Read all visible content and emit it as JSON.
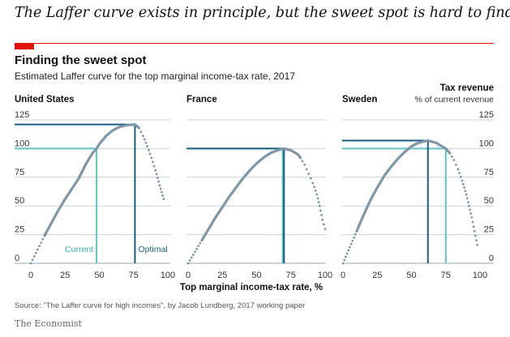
{
  "headline": "The Laffer curve exists in principle, but the sweet spot is hard to find",
  "brand": "The Economist",
  "chart_data": {
    "type": "line",
    "title": "Finding the sweet spot",
    "subtitle": "Estimated Laffer curve for the top marginal income-tax rate, 2017",
    "xlabel": "Top marginal income-tax rate, %",
    "ylabel": "Tax revenue",
    "ylabel_unit": "% of current revenue",
    "source": "Source: \"The Laffer curve for high incomes\", by Jacob Lundberg, 2017 working paper",
    "ylim": [
      0,
      125
    ],
    "xlim": [
      0,
      100
    ],
    "y_ticks": [
      0,
      25,
      50,
      75,
      100,
      125
    ],
    "x_tick_labels": [
      "0",
      "25",
      "50",
      "75",
      "100"
    ],
    "grid": "horizontal",
    "colors": {
      "curve": "#7f97a6",
      "current": "#5fc4c4",
      "optimal": "#1b5e82",
      "grid": "#c8d3da",
      "accent": "#e3120b"
    },
    "panels": [
      {
        "name": "United States",
        "current": {
          "rate": 48,
          "revenue": 100,
          "label": "Current"
        },
        "optimal": {
          "rate": 76,
          "revenue": 121,
          "label": "Optimal"
        },
        "solid_until": 79,
        "curve": [
          [
            0,
            0
          ],
          [
            5,
            12
          ],
          [
            10,
            24
          ],
          [
            15,
            35
          ],
          [
            20,
            46
          ],
          [
            25,
            56
          ],
          [
            30,
            65
          ],
          [
            35,
            74
          ],
          [
            40,
            86
          ],
          [
            45,
            96
          ],
          [
            48,
            100
          ],
          [
            50,
            104
          ],
          [
            55,
            111
          ],
          [
            60,
            116
          ],
          [
            65,
            119
          ],
          [
            70,
            120.5
          ],
          [
            76,
            121
          ],
          [
            79,
            118
          ],
          [
            82,
            111
          ],
          [
            85,
            102
          ],
          [
            88,
            92
          ],
          [
            91,
            81
          ],
          [
            94,
            68
          ],
          [
            97,
            56
          ]
        ]
      },
      {
        "name": "France",
        "current": {
          "rate": 69,
          "revenue": 100
        },
        "optimal": {
          "rate": 70,
          "revenue": 100
        },
        "solid_until": 82,
        "curve": [
          [
            0,
            0
          ],
          [
            5,
            10
          ],
          [
            10,
            20
          ],
          [
            15,
            30
          ],
          [
            20,
            40
          ],
          [
            25,
            49
          ],
          [
            30,
            58
          ],
          [
            35,
            66
          ],
          [
            40,
            74
          ],
          [
            45,
            81
          ],
          [
            50,
            87
          ],
          [
            55,
            92
          ],
          [
            60,
            96
          ],
          [
            65,
            98.5
          ],
          [
            70,
            100
          ],
          [
            75,
            98.5
          ],
          [
            80,
            95
          ],
          [
            82,
            92
          ],
          [
            85,
            86
          ],
          [
            88,
            78
          ],
          [
            91,
            70
          ],
          [
            94,
            60
          ],
          [
            96,
            50
          ],
          [
            98,
            38
          ],
          [
            100,
            30
          ]
        ]
      },
      {
        "name": "Sweden",
        "current": {
          "rate": 75,
          "revenue": 100
        },
        "optimal": {
          "rate": 62,
          "revenue": 107
        },
        "solid_until": 78,
        "curve": [
          [
            0,
            0
          ],
          [
            5,
            14
          ],
          [
            10,
            28
          ],
          [
            15,
            42
          ],
          [
            20,
            55
          ],
          [
            25,
            66
          ],
          [
            30,
            76
          ],
          [
            35,
            84
          ],
          [
            40,
            91
          ],
          [
            45,
            97
          ],
          [
            50,
            102
          ],
          [
            55,
            105
          ],
          [
            62,
            107
          ],
          [
            68,
            105
          ],
          [
            75,
            100
          ],
          [
            78,
            96
          ],
          [
            81,
            90
          ],
          [
            84,
            82
          ],
          [
            87,
            72
          ],
          [
            90,
            60
          ],
          [
            92,
            50
          ],
          [
            94,
            40
          ],
          [
            96,
            28
          ],
          [
            98,
            16
          ]
        ]
      }
    ]
  }
}
